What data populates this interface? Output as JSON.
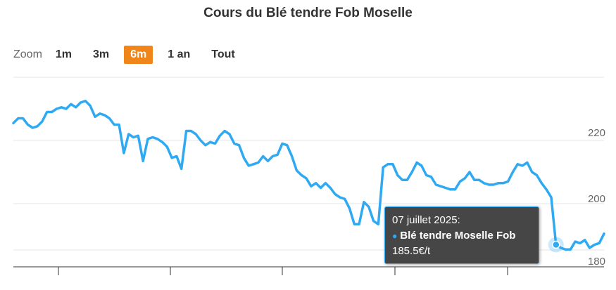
{
  "title": "Cours du Blé tendre Fob Moselle",
  "zoom": {
    "label": "Zoom",
    "buttons": [
      {
        "label": "1m",
        "active": false
      },
      {
        "label": "3m",
        "active": false
      },
      {
        "label": "6m",
        "active": true
      },
      {
        "label": "1 an",
        "active": false
      },
      {
        "label": "Tout",
        "active": false
      }
    ]
  },
  "colors": {
    "series": "#2ea9f2",
    "zoom_active": "#f0861a",
    "grid": "#e6e6e6"
  },
  "tooltip": {
    "date": "07 juillet 2025:",
    "series_name": "Blé tendre Moselle Fob",
    "value": "185.5€/t"
  },
  "chart_data": {
    "type": "line",
    "title": "Cours du Blé tendre Fob Moselle",
    "y_ticks": [
      "220",
      "200",
      "180"
    ],
    "ylim": [
      178,
      233
    ],
    "grid": true,
    "series": [
      {
        "name": "Blé tendre Moselle Fob",
        "values": [
          225.5,
          227,
          227,
          225,
          224,
          224.5,
          226,
          229,
          229,
          230,
          230.5,
          230,
          231.5,
          230.5,
          232,
          232.5,
          231,
          227.5,
          228.5,
          228,
          227,
          225,
          225,
          216,
          222,
          221,
          221.5,
          213.5,
          220.5,
          221,
          220.5,
          219.5,
          218,
          214.5,
          215,
          211,
          223,
          223,
          222,
          220,
          218.5,
          219.5,
          219,
          221.5,
          223,
          222,
          219,
          218.5,
          214.5,
          212,
          212.5,
          213,
          215,
          213.5,
          215,
          215.5,
          219,
          218.5,
          215,
          210.5,
          209,
          208,
          205.5,
          206.5,
          205,
          206.5,
          205,
          203,
          202,
          201.5,
          198.5,
          193.5,
          193.5,
          200.5,
          199,
          194.5,
          193.5,
          211.5,
          212.5,
          212.5,
          209,
          207.5,
          207.5,
          210,
          213,
          212,
          209,
          208.5,
          206,
          205.5,
          205,
          204.5,
          204.5,
          207,
          208,
          210,
          207.5,
          207.5,
          206.5,
          206,
          206,
          206.5,
          206.5,
          207,
          210,
          212.5,
          212,
          213,
          210,
          209,
          206.5,
          204.5,
          202,
          187,
          186,
          185.5,
          185.5,
          188,
          187.5,
          188.5,
          186,
          187,
          187.5,
          190.5
        ]
      }
    ]
  }
}
